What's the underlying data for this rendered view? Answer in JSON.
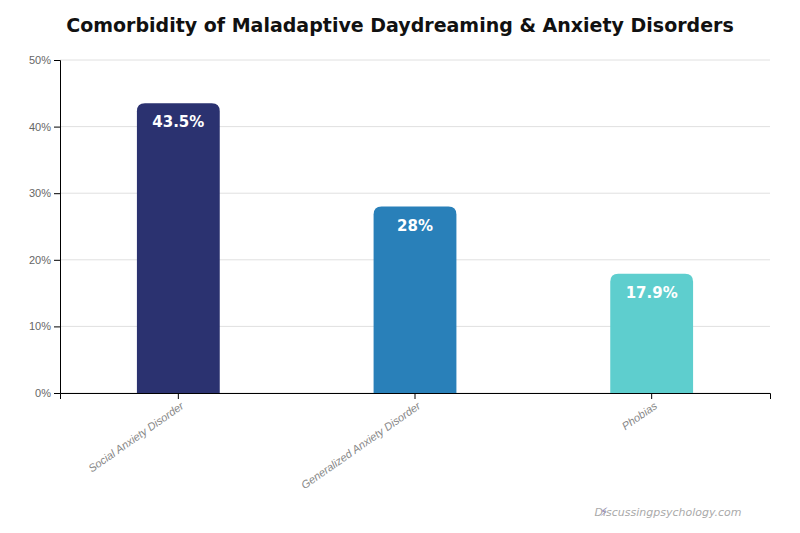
{
  "chart_data": {
    "type": "bar",
    "title": "Comorbidity of Maladaptive Daydreaming & Anxiety Disorders",
    "categories": [
      "Social Anxiety Disorder",
      "Generalized Anxiety Disorder",
      "Phobias"
    ],
    "values": [
      43.5,
      28.0,
      17.9
    ],
    "value_labels": [
      "43.5%",
      "28%",
      "17.9%"
    ],
    "data_labels": true,
    "colors": [
      "#2b3270",
      "#2980b9",
      "#5ecece"
    ],
    "ylim": [
      0,
      50
    ],
    "yticks": [
      {
        "value": 0,
        "label": "0%"
      },
      {
        "value": 10,
        "label": "10%"
      },
      {
        "value": 20,
        "label": "20%"
      },
      {
        "value": 30,
        "label": "30%"
      },
      {
        "value": 40,
        "label": "40%"
      },
      {
        "value": 50,
        "label": "50%"
      }
    ],
    "grid": true,
    "annotations": [
      "⚡",
      "Discussingpsychology.com"
    ]
  }
}
